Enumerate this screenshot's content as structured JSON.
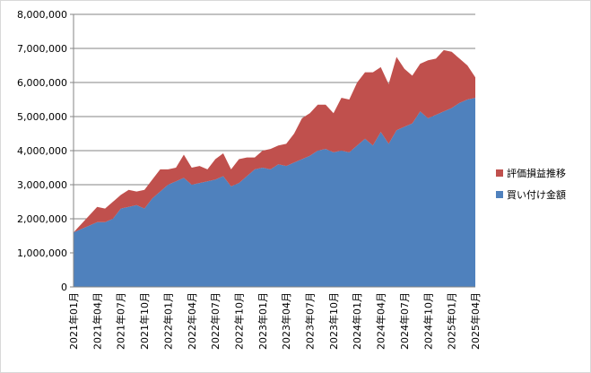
{
  "chart_data": {
    "type": "area",
    "stacked": true,
    "grid": true,
    "legend": "right",
    "categories": [
      "2021年01月",
      null,
      null,
      "2021年04月",
      null,
      null,
      "2021年07月",
      null,
      null,
      "2021年10月",
      null,
      null,
      "2022年01月",
      null,
      null,
      "2022年04月",
      null,
      null,
      "2022年07月",
      null,
      null,
      "2022年10月",
      null,
      null,
      "2023年01月",
      null,
      null,
      "2023年04月",
      null,
      null,
      "2023年07月",
      null,
      null,
      "2023年10月",
      null,
      null,
      "2024年01月",
      null,
      null,
      "2024年04月",
      null,
      null,
      "2024年07月",
      null,
      null,
      "2024年10月",
      null,
      null,
      "2025年01月",
      null,
      null,
      "2025年04月"
    ],
    "series": [
      {
        "name": "買い付け金額",
        "color": "#4f81bd",
        "values": [
          1600000,
          1700000,
          1800000,
          1900000,
          1900000,
          2000000,
          2300000,
          2350000,
          2400000,
          2300000,
          2600000,
          2800000,
          3000000,
          3100000,
          3200000,
          3000000,
          3050000,
          3100000,
          3150000,
          3250000,
          2950000,
          3050000,
          3250000,
          3450000,
          3500000,
          3450000,
          3600000,
          3550000,
          3650000,
          3750000,
          3850000,
          4000000,
          4050000,
          3950000,
          4000000,
          3950000,
          4150000,
          4350000,
          4150000,
          4550000,
          4200000,
          4600000,
          4700000,
          4800000,
          5150000,
          4950000,
          5050000,
          5150000,
          5250000,
          5400000,
          5500000,
          5550000
        ]
      },
      {
        "name": "評価損益推移",
        "color": "#c0504d",
        "values": [
          0,
          150000,
          300000,
          450000,
          400000,
          500000,
          400000,
          500000,
          400000,
          550000,
          550000,
          650000,
          450000,
          400000,
          680000,
          500000,
          500000,
          350000,
          600000,
          670000,
          500000,
          700000,
          550000,
          350000,
          500000,
          600000,
          550000,
          650000,
          850000,
          1200000,
          1250000,
          1350000,
          1300000,
          1150000,
          1550000,
          1550000,
          1850000,
          1950000,
          2150000,
          1900000,
          1750000,
          2150000,
          1700000,
          1400000,
          1400000,
          1700000,
          1650000,
          1800000,
          1650000,
          1300000,
          1000000,
          600000
        ]
      }
    ],
    "ylim": [
      0,
      8000000
    ],
    "yticks": [
      0,
      {
        "value": 1000000,
        "label": "1,000,000"
      },
      {
        "value": 2000000,
        "label": "2,000,000"
      },
      {
        "value": 3000000,
        "label": "3,000,000"
      },
      {
        "value": 4000000,
        "label": "4,000,000"
      },
      {
        "value": 5000000,
        "label": "5,000,000"
      },
      {
        "value": 6000000,
        "label": "6,000,000"
      },
      {
        "value": 7000000,
        "label": "7,000,000"
      },
      {
        "value": 8000000,
        "label": "8,000,000"
      }
    ]
  }
}
